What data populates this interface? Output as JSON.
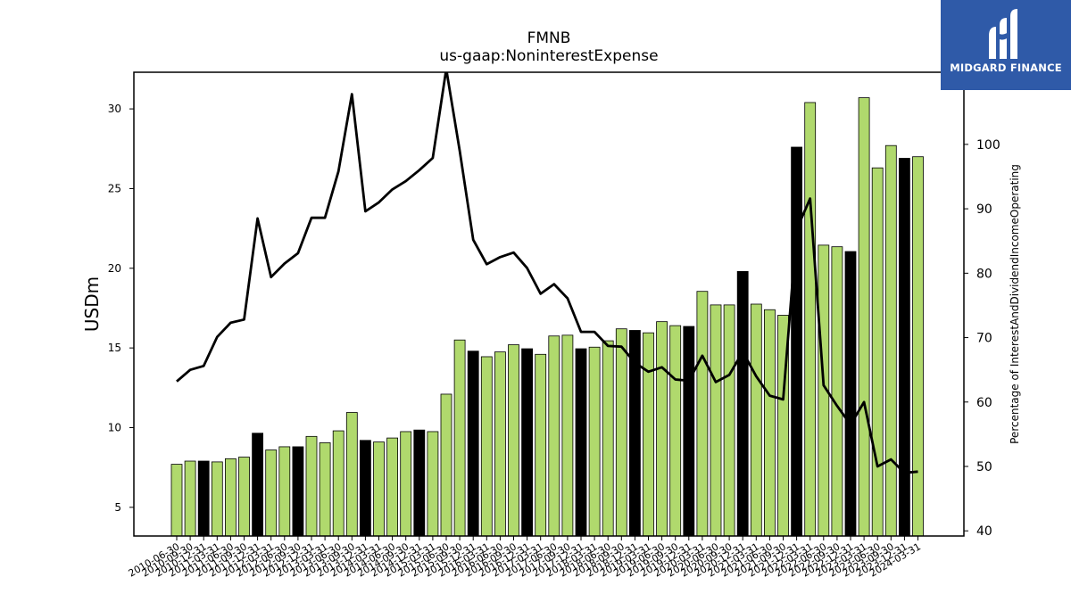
{
  "chart_data": {
    "type": "bar",
    "title": "FMNB",
    "subtitle": "us-gaap:NoninterestExpense",
    "ylabel": "USDm",
    "ylabel_right": "Percentage of InterestAndDividendIncomeOperating",
    "ylim": [
      3.2,
      32.3
    ],
    "ylim_right": [
      39.2,
      111.2
    ],
    "yticks": [
      5,
      10,
      15,
      20,
      25,
      30
    ],
    "yticks_right": [
      40,
      50,
      60,
      70,
      80,
      90,
      100
    ],
    "categories": [
      "2010-06-30",
      "2010-09-30",
      "2010-12-31",
      "2011-03-31",
      "2011-06-30",
      "2011-09-30",
      "2011-12-31",
      "2012-03-31",
      "2012-06-30",
      "2012-09-30",
      "2012-12-31",
      "2013-03-31",
      "2013-06-30",
      "2013-09-30",
      "2013-12-31",
      "2014-03-31",
      "2014-06-30",
      "2014-09-30",
      "2014-12-31",
      "2015-03-31",
      "2015-06-30",
      "2015-09-30",
      "2015-12-31",
      "2016-03-31",
      "2016-06-30",
      "2016-09-30",
      "2016-12-31",
      "2017-03-31",
      "2017-06-30",
      "2017-09-30",
      "2017-12-31",
      "2018-03-31",
      "2018-06-30",
      "2018-09-30",
      "2018-12-31",
      "2019-03-31",
      "2019-06-30",
      "2019-09-30",
      "2019-12-31",
      "2020-03-31",
      "2020-06-30",
      "2020-09-30",
      "2020-12-31",
      "2021-03-31",
      "2021-06-30",
      "2021-09-30",
      "2021-12-31",
      "2022-03-31",
      "2022-06-30",
      "2022-09-30",
      "2022-12-31",
      "2023-03-31",
      "2023-06-30",
      "2023-09-30",
      "2023-12-31",
      "2024-03-31"
    ],
    "series": [
      {
        "name": "NoninterestExpense",
        "unit": "USDm",
        "values": [
          7.7,
          7.9,
          7.9,
          7.85,
          8.05,
          8.15,
          9.65,
          8.6,
          8.8,
          8.8,
          9.45,
          9.05,
          9.8,
          10.95,
          9.2,
          9.1,
          9.35,
          9.75,
          9.85,
          9.75,
          12.1,
          15.5,
          14.8,
          14.45,
          14.75,
          15.2,
          14.95,
          14.6,
          15.75,
          15.8,
          14.95,
          15.05,
          15.45,
          16.2,
          16.1,
          15.95,
          16.65,
          16.4,
          16.35,
          18.55,
          17.7,
          17.7,
          19.8,
          17.75,
          17.4,
          17.05,
          27.6,
          30.4,
          21.45,
          21.35,
          21.05,
          30.7,
          26.3,
          27.7,
          26.9,
          27.0
        ]
      },
      {
        "name": "Percentage of InterestAndDividendIncomeOperating",
        "unit": "%",
        "values": [
          63.2,
          65.0,
          65.6,
          70.1,
          72.3,
          72.8,
          88.5,
          79.4,
          81.5,
          83.1,
          88.6,
          88.6,
          95.8,
          107.8,
          89.6,
          91.0,
          93.0,
          94.3,
          96.0,
          97.9,
          111.7,
          99.0,
          85.2,
          81.4,
          82.5,
          83.2,
          80.8,
          76.8,
          78.3,
          76.1,
          70.9,
          70.9,
          68.7,
          68.6,
          66.1,
          64.7,
          65.4,
          63.5,
          63.3,
          67.2,
          63.1,
          64.2,
          67.8,
          64.0,
          61.0,
          60.4,
          86.8,
          91.6,
          62.6,
          59.4,
          56.5,
          60.0,
          50.0,
          51.1,
          49.0,
          49.2
        ]
      }
    ],
    "highlight_bars": [
      2,
      6,
      9,
      14,
      18,
      22,
      26,
      30,
      34,
      38,
      42,
      46,
      50,
      54
    ],
    "colors": {
      "bar": "#b0d96d",
      "bar_highlight": "#000000",
      "bar_edge": "#000000",
      "line": "#000000"
    },
    "grid": false,
    "legend": "none"
  },
  "logo": {
    "text": "MIDGARD FINANCE",
    "icon": "midgard-logo-icon",
    "background": "#2f5aa8"
  }
}
